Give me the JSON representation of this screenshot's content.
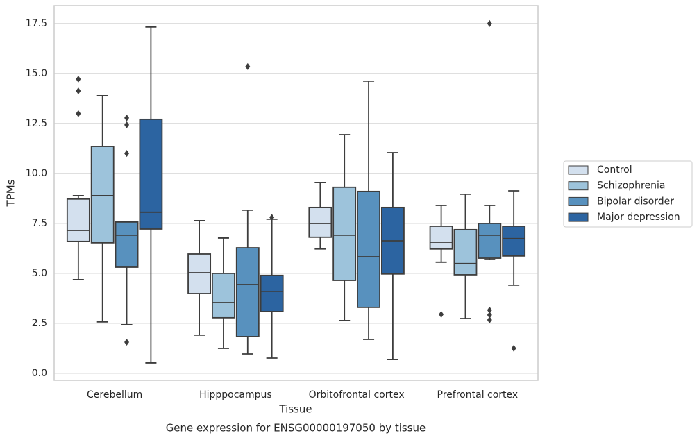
{
  "chart_data": {
    "type": "box",
    "title": "Gene expression for ENSG00000197050 by tissue",
    "x_label": "Tissue",
    "y_label": "TPMs",
    "categories": [
      "Cerebellum",
      "Hipppocampus",
      "Orbitofrontal cortex",
      "Prefrontal cortex"
    ],
    "ylim": [
      -0.35,
      18.4
    ],
    "yticks": [
      {
        "value": 0,
        "label": "0.0"
      },
      2.5,
      {
        "value": 5,
        "label": "5.0"
      },
      7.5,
      {
        "value": 10,
        "label": "10.0"
      },
      12.5,
      {
        "value": 15,
        "label": "15.0"
      },
      17.5
    ],
    "grid": true,
    "legend_position": "right",
    "series": [
      {
        "name": "Control",
        "color": "#d3e0ee",
        "whislo": [
          4.69,
          1.91,
          6.22,
          5.56
        ],
        "q1": [
          6.6,
          3.99,
          6.81,
          6.22
        ],
        "median": [
          7.15,
          5.03,
          7.5,
          6.56
        ],
        "q3": [
          8.72,
          5.97,
          8.3,
          7.36
        ],
        "whishi": [
          8.89,
          7.64,
          9.55,
          8.4
        ],
        "fliers": [
          [
            14.72,
            14.13,
            12.99
          ],
          [],
          [],
          [
            2.95
          ]
        ]
      },
      {
        "name": "Schizophrenia",
        "color": "#9dc3db",
        "whislo": [
          2.57,
          1.25,
          2.64,
          2.74
        ],
        "q1": [
          6.53,
          2.78,
          4.65,
          4.93
        ],
        "median": [
          8.89,
          3.54,
          6.91,
          5.49
        ],
        "q3": [
          11.35,
          5.0,
          9.31,
          7.19
        ],
        "whishi": [
          13.89,
          6.77,
          11.94,
          8.96
        ],
        "fliers": [
          [],
          [],
          [],
          []
        ]
      },
      {
        "name": "Bipolar disorder",
        "color": "#5891be",
        "whislo": [
          2.43,
          0.97,
          1.7,
          5.69
        ],
        "q1": [
          5.31,
          1.84,
          3.3,
          5.76
        ],
        "median": [
          6.91,
          4.44,
          5.83,
          6.91
        ],
        "q3": [
          7.57,
          6.28,
          9.1,
          7.5
        ],
        "whishi": [
          7.6,
          8.16,
          14.62,
          8.4
        ],
        "fliers": [
          [
            12.78,
            12.43,
            11.0,
            1.56
          ],
          [
            15.35
          ],
          [],
          [
            17.5,
            3.16,
            2.92,
            2.67
          ]
        ]
      },
      {
        "name": "Major depression",
        "color": "#2c64a1",
        "whislo": [
          0.52,
          0.76,
          0.69,
          4.41
        ],
        "q1": [
          7.22,
          3.09,
          4.97,
          5.87
        ],
        "median": [
          8.06,
          4.1,
          6.63,
          6.74
        ],
        "q3": [
          12.71,
          4.9,
          8.3,
          7.36
        ],
        "whishi": [
          17.33,
          7.71,
          11.04,
          9.13
        ],
        "fliers": [
          [],
          [
            7.8
          ],
          [],
          [
            1.25
          ]
        ]
      }
    ]
  }
}
